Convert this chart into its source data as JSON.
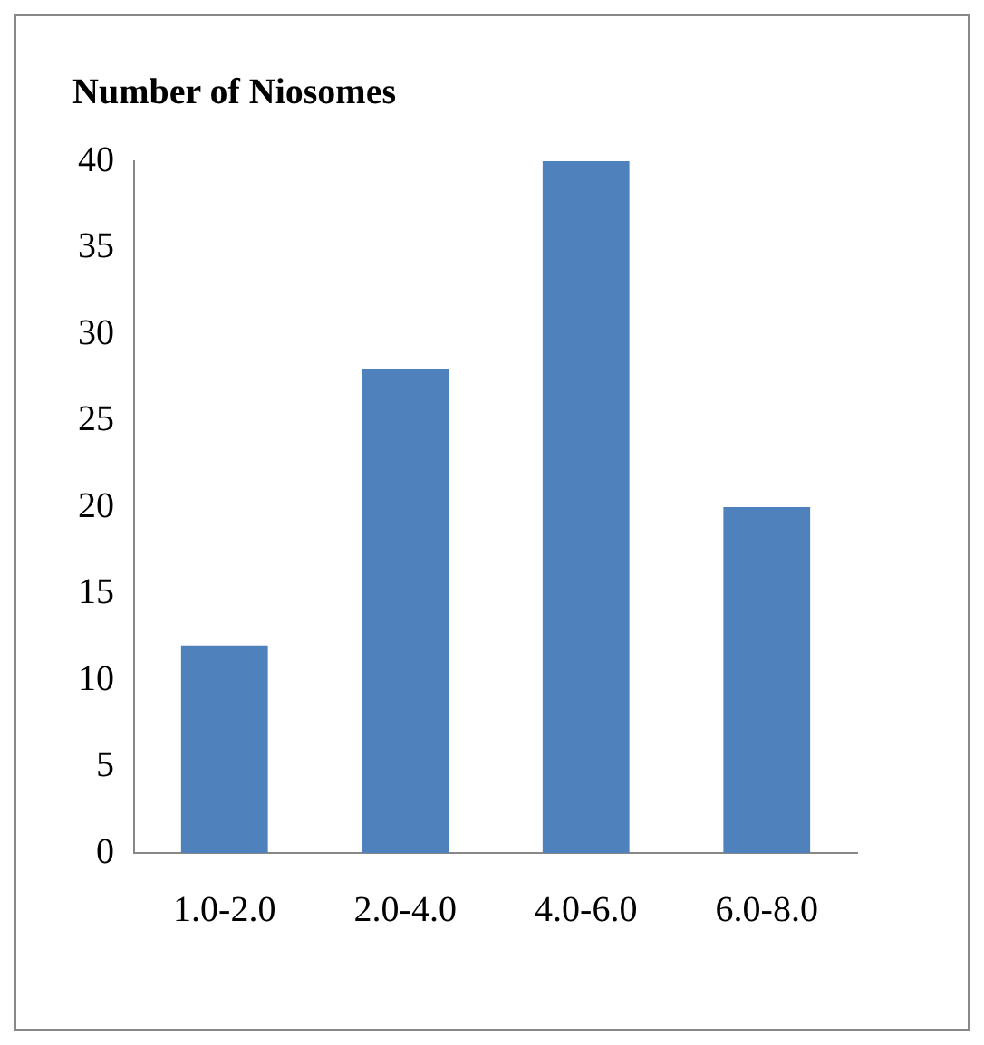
{
  "chart_data": {
    "type": "bar",
    "title": "Number of Niosomes",
    "categories": [
      "1.0-2.0",
      "2.0-4.0",
      "4.0-6.0",
      "6.0-8.0"
    ],
    "values": [
      12,
      28,
      40,
      20
    ],
    "color": "#4f81bd",
    "ylim": [
      0,
      40
    ],
    "yticks": [
      0,
      5,
      10,
      15,
      20,
      25,
      30,
      35,
      40
    ],
    "grid": false,
    "legend": false
  }
}
